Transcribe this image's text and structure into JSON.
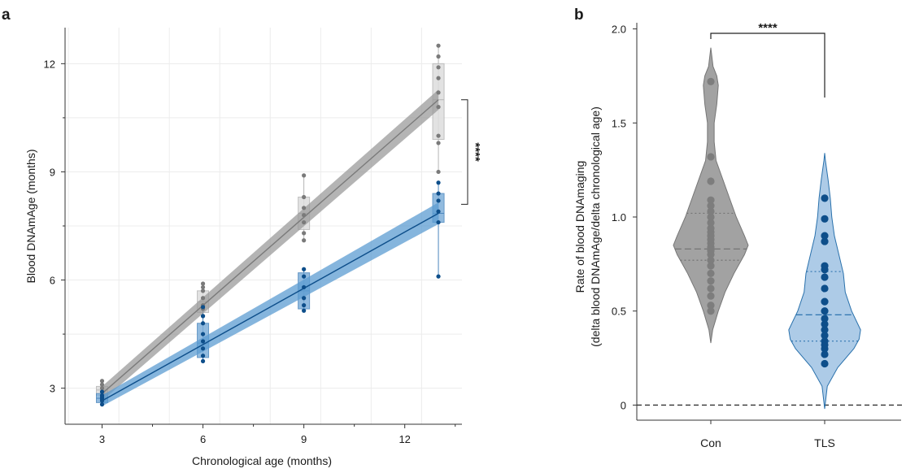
{
  "chart_data": [
    {
      "panel": "a",
      "type": "scatter",
      "xlabel": "Chronological age (months)",
      "ylabel": "Blood DNAmAge (months)",
      "xlim": [
        1.9,
        13.7
      ],
      "ylim": [
        2,
        13
      ],
      "xticks": [
        3,
        6,
        9,
        12
      ],
      "yticks": [
        3,
        6,
        9,
        12
      ],
      "grid": true,
      "significance": "****",
      "series": [
        {
          "name": "Con",
          "color": "#7a7a7a",
          "band_color": "#9b9b9b",
          "box_fill": "#dedede",
          "box_stroke": "#b5b5b5",
          "fit": {
            "x": [
              3,
              13
            ],
            "y": [
              2.85,
              11.0
            ],
            "ci": [
              0.2,
              0.28
            ]
          },
          "points": [
            {
              "x": 3,
              "y": 2.8
            },
            {
              "x": 3,
              "y": 2.9
            },
            {
              "x": 3,
              "y": 3.0
            },
            {
              "x": 3,
              "y": 3.1
            },
            {
              "x": 3,
              "y": 3.2
            },
            {
              "x": 3,
              "y": 2.7
            },
            {
              "x": 6,
              "y": 5.0
            },
            {
              "x": 6,
              "y": 5.2
            },
            {
              "x": 6,
              "y": 5.3
            },
            {
              "x": 6,
              "y": 5.5
            },
            {
              "x": 6,
              "y": 5.7
            },
            {
              "x": 6,
              "y": 5.8
            },
            {
              "x": 6,
              "y": 5.9
            },
            {
              "x": 9,
              "y": 7.1
            },
            {
              "x": 9,
              "y": 7.3
            },
            {
              "x": 9,
              "y": 7.6
            },
            {
              "x": 9,
              "y": 7.8
            },
            {
              "x": 9,
              "y": 8.0
            },
            {
              "x": 9,
              "y": 8.3
            },
            {
              "x": 9,
              "y": 8.9
            },
            {
              "x": 13,
              "y": 9.0
            },
            {
              "x": 13,
              "y": 9.8
            },
            {
              "x": 13,
              "y": 10.0
            },
            {
              "x": 13,
              "y": 10.8
            },
            {
              "x": 13,
              "y": 11.2
            },
            {
              "x": 13,
              "y": 11.6
            },
            {
              "x": 13,
              "y": 11.9
            },
            {
              "x": 13,
              "y": 12.2
            },
            {
              "x": 13,
              "y": 12.5
            }
          ],
          "boxes": [
            {
              "x": 3,
              "q1": 2.8,
              "q3": 3.05,
              "median": 2.95,
              "whisker_low": 2.7,
              "whisker_high": 3.2
            },
            {
              "x": 6,
              "q1": 5.1,
              "q3": 5.7,
              "median": 5.4,
              "whisker_low": 5.0,
              "whisker_high": 5.9
            },
            {
              "x": 9,
              "q1": 7.4,
              "q3": 8.3,
              "median": 7.85,
              "whisker_low": 7.1,
              "whisker_high": 8.9
            },
            {
              "x": 13,
              "q1": 9.9,
              "q3": 12.0,
              "median": 11.0,
              "whisker_low": 9.0,
              "whisker_high": 12.5
            }
          ]
        },
        {
          "name": "TLS",
          "color": "#0d4e8a",
          "band_color": "#5c9cd1",
          "box_fill": "#7fb0da",
          "box_stroke": "#4a86bd",
          "fit": {
            "x": [
              3,
              13
            ],
            "y": [
              2.65,
              7.85
            ],
            "ci": [
              0.15,
              0.3
            ]
          },
          "points": [
            {
              "x": 3,
              "y": 2.55
            },
            {
              "x": 3,
              "y": 2.65
            },
            {
              "x": 3,
              "y": 2.7
            },
            {
              "x": 3,
              "y": 2.75
            },
            {
              "x": 3,
              "y": 2.8
            },
            {
              "x": 3,
              "y": 2.9
            },
            {
              "x": 6,
              "y": 3.75
            },
            {
              "x": 6,
              "y": 3.9
            },
            {
              "x": 6,
              "y": 4.1
            },
            {
              "x": 6,
              "y": 4.3
            },
            {
              "x": 6,
              "y": 4.5
            },
            {
              "x": 6,
              "y": 4.8
            },
            {
              "x": 6,
              "y": 5.0
            },
            {
              "x": 6,
              "y": 5.25
            },
            {
              "x": 9,
              "y": 5.15
            },
            {
              "x": 9,
              "y": 5.3
            },
            {
              "x": 9,
              "y": 5.5
            },
            {
              "x": 9,
              "y": 5.8
            },
            {
              "x": 9,
              "y": 6.1
            },
            {
              "x": 9,
              "y": 6.3
            },
            {
              "x": 13,
              "y": 6.1
            },
            {
              "x": 13,
              "y": 7.6
            },
            {
              "x": 13,
              "y": 7.9
            },
            {
              "x": 13,
              "y": 8.2
            },
            {
              "x": 13,
              "y": 8.4
            },
            {
              "x": 13,
              "y": 8.7
            }
          ],
          "boxes": [
            {
              "x": 3,
              "q1": 2.6,
              "q3": 2.85,
              "median": 2.72,
              "whisker_low": 2.55,
              "whisker_high": 2.9
            },
            {
              "x": 6,
              "q1": 3.85,
              "q3": 4.8,
              "median": 4.25,
              "whisker_low": 3.75,
              "whisker_high": 5.25
            },
            {
              "x": 9,
              "q1": 5.2,
              "q3": 6.2,
              "median": 5.7,
              "whisker_low": 5.15,
              "whisker_high": 6.3
            },
            {
              "x": 13,
              "q1": 7.6,
              "q3": 8.4,
              "median": 7.85,
              "whisker_low": 6.1,
              "whisker_high": 8.7
            }
          ]
        }
      ]
    },
    {
      "panel": "b",
      "type": "violin",
      "categories": [
        "Con",
        "TLS"
      ],
      "ylabel_line1": "Rate of blood DNAmaging",
      "ylabel_line2": "(delta blood DNAmAge/delta chronological age)",
      "ylim": [
        -0.05,
        2.05
      ],
      "yticks": [
        "0",
        "0.5",
        "1.0",
        "1.5",
        "2.0"
      ],
      "reference_line": 0,
      "significance": "****",
      "groups": [
        {
          "name": "Con",
          "fill": "#9e9e9e",
          "stroke": "#6f6f6f",
          "point_color": "#7d7d7d",
          "median": 0.83,
          "q1": 0.77,
          "q3": 1.02,
          "density_y": [
            0.33,
            0.4,
            0.5,
            0.6,
            0.7,
            0.8,
            0.85,
            0.9,
            1.0,
            1.1,
            1.2,
            1.3,
            1.4,
            1.5,
            1.6,
            1.7,
            1.75,
            1.8,
            1.9
          ],
          "density_w": [
            0.0,
            0.05,
            0.2,
            0.38,
            0.62,
            0.9,
            1.0,
            0.9,
            0.68,
            0.5,
            0.32,
            0.14,
            0.09,
            0.09,
            0.16,
            0.2,
            0.16,
            0.06,
            0.0
          ],
          "points": [
            0.5,
            0.53,
            0.58,
            0.62,
            0.66,
            0.7,
            0.74,
            0.77,
            0.8,
            0.82,
            0.84,
            0.86,
            0.88,
            0.9,
            0.92,
            0.94,
            0.97,
            1.0,
            1.03,
            1.06,
            1.09,
            1.19,
            1.32,
            1.72
          ]
        },
        {
          "name": "TLS",
          "fill": "#a9c9e6",
          "stroke": "#1f6aa8",
          "point_color": "#0d4e8a",
          "median": 0.48,
          "q1": 0.34,
          "q3": 0.71,
          "density_y": [
            -0.02,
            0.1,
            0.2,
            0.3,
            0.35,
            0.4,
            0.5,
            0.6,
            0.7,
            0.8,
            0.9,
            1.0,
            1.1,
            1.2,
            1.3,
            1.34
          ],
          "density_w": [
            0.0,
            0.07,
            0.35,
            0.78,
            0.92,
            0.96,
            0.72,
            0.55,
            0.5,
            0.38,
            0.26,
            0.19,
            0.15,
            0.09,
            0.02,
            0.0
          ],
          "points": [
            0.22,
            0.27,
            0.3,
            0.32,
            0.34,
            0.37,
            0.4,
            0.43,
            0.46,
            0.5,
            0.55,
            0.62,
            0.68,
            0.72,
            0.74,
            0.87,
            0.9,
            0.99,
            1.1
          ]
        }
      ]
    }
  ],
  "panels": {
    "a": {
      "letter": "a"
    },
    "b": {
      "letter": "b"
    }
  }
}
